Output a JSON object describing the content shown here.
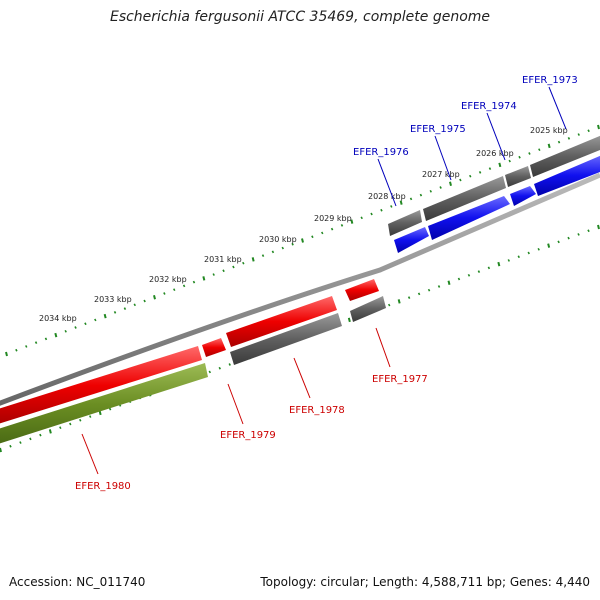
{
  "title": "Escherichia fergusonii ATCC 35469, complete genome",
  "footer": {
    "accession": "Accession: NC_011740",
    "summary": "Topology: circular; Length: 4,588,711 bp; Genes: 4,440"
  },
  "colors": {
    "forward_gene": "#ee0000",
    "reverse_gene": "#1010ee",
    "gray_gene": "#606060",
    "rna_gene": "#6b8e23",
    "forward_label": "#cc0000",
    "reverse_label": "#0000bb",
    "tick": "#228822",
    "backbone": "#888888"
  },
  "ticks": [
    "2025 kbp",
    "2026 kbp",
    "2027 kbp",
    "2028 kbp",
    "2029 kbp",
    "2030 kbp",
    "2031 kbp",
    "2032 kbp",
    "2033 kbp",
    "2034 kbp"
  ],
  "genes": [
    {
      "label": "EFER_1973",
      "strand": "reverse"
    },
    {
      "label": "EFER_1974",
      "strand": "reverse"
    },
    {
      "label": "EFER_1975",
      "strand": "reverse"
    },
    {
      "label": "EFER_1976",
      "strand": "reverse"
    },
    {
      "label": "EFER_1977",
      "strand": "forward"
    },
    {
      "label": "EFER_1978",
      "strand": "forward"
    },
    {
      "label": "EFER_1979",
      "strand": "forward"
    },
    {
      "label": "EFER_1980",
      "strand": "forward"
    }
  ]
}
